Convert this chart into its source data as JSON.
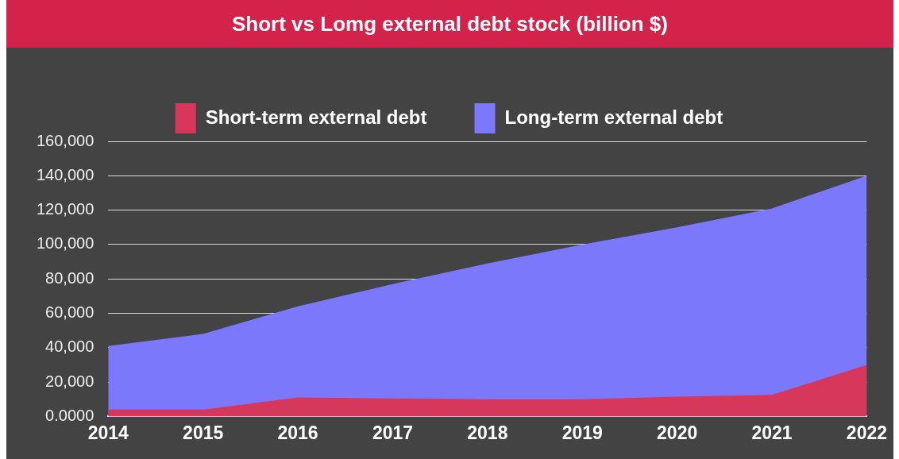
{
  "chart_data": {
    "type": "area",
    "title": "Short vs Lomg external debt stock (billion $)",
    "categories": [
      "2014",
      "2015",
      "2016",
      "2017",
      "2018",
      "2019",
      "2020",
      "2021",
      "2022"
    ],
    "series": [
      {
        "name": "Short-term external debt",
        "color": "#d6375a",
        "values": [
          4000,
          4000,
          11000,
          10500,
          10000,
          10000,
          11500,
          12500,
          30000
        ]
      },
      {
        "name": "Long-term external debt",
        "color": "#7b78fc",
        "values": [
          41000,
          48000,
          64000,
          77000,
          89000,
          100000,
          110000,
          121000,
          140000
        ]
      }
    ],
    "ylim": [
      0,
      160000
    ],
    "yticks": [
      {
        "value": 0,
        "label": "0.0000"
      },
      {
        "value": 20000,
        "label": "20,000"
      },
      {
        "value": 40000,
        "label": "40,000"
      },
      {
        "value": 60000,
        "label": "60,000"
      },
      {
        "value": 80000,
        "label": "80,000"
      },
      {
        "value": 100000,
        "label": "100,000"
      },
      {
        "value": 120000,
        "label": "120,000"
      },
      {
        "value": 140000,
        "label": "140,000"
      },
      {
        "value": 160000,
        "label": "160,000"
      }
    ],
    "grid": "y",
    "legend": "top"
  }
}
